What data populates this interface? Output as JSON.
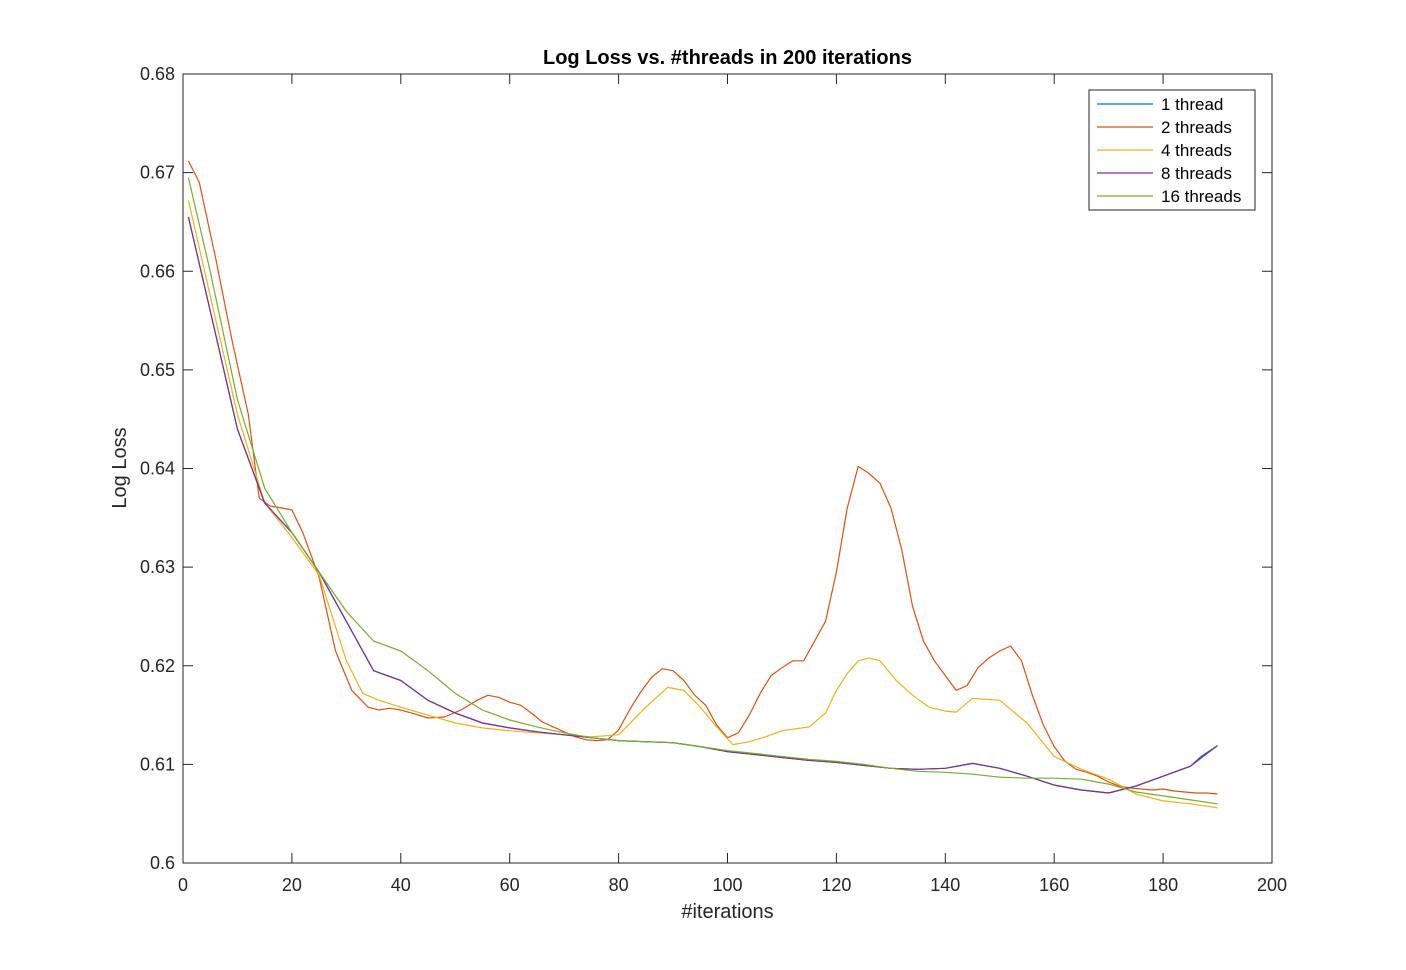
{
  "chart_data": {
    "type": "line",
    "title": "Log Loss vs. #threads in 200 iterations",
    "xlabel": "#iterations",
    "ylabel": "Log Loss",
    "xlim": [
      0,
      200
    ],
    "ylim": [
      0.6,
      0.68
    ],
    "xticks": [
      0,
      20,
      40,
      60,
      80,
      100,
      120,
      140,
      160,
      180,
      200
    ],
    "yticks": [
      0.6,
      0.61,
      0.62,
      0.63,
      0.64,
      0.65,
      0.66,
      0.67,
      0.68
    ],
    "ytick_labels": [
      "0.6",
      "0.61",
      "0.62",
      "0.63",
      "0.64",
      "0.65",
      "0.66",
      "0.67",
      "0.68"
    ],
    "grid": false,
    "legend_position": "top-right",
    "series": [
      {
        "name": "1 thread",
        "color": "#0072BD",
        "x": [
          1,
          5,
          10,
          15,
          20,
          25,
          30,
          35,
          40,
          45,
          50,
          55,
          60,
          65,
          70,
          75,
          80,
          85,
          90,
          95,
          100,
          105,
          110,
          115,
          120,
          125,
          130,
          135,
          140,
          145,
          150,
          155,
          160,
          165,
          170,
          175,
          180,
          185,
          190
        ],
        "y": [
          0.6655,
          0.656,
          0.644,
          0.6365,
          0.6335,
          0.6295,
          0.6245,
          0.6195,
          0.6185,
          0.6165,
          0.6152,
          0.6142,
          0.6137,
          0.6133,
          0.613,
          0.6127,
          0.6124,
          0.6123,
          0.6122,
          0.6118,
          0.6113,
          0.611,
          0.6107,
          0.6104,
          0.6102,
          0.6099,
          0.6096,
          0.6095,
          0.6096,
          0.6101,
          0.6096,
          0.6088,
          0.6079,
          0.6074,
          0.6071,
          0.6078,
          0.6088,
          0.6098,
          0.6119
        ]
      },
      {
        "name": "2 threads",
        "color": "#D95319",
        "x": [
          1,
          3,
          6,
          9,
          12,
          14,
          16,
          18,
          20,
          22,
          25,
          28,
          31,
          34,
          36,
          38,
          40,
          42,
          45,
          48,
          51,
          54,
          56,
          58,
          60,
          62,
          64,
          66,
          68,
          70,
          72,
          74,
          76,
          78,
          80,
          82,
          84,
          86,
          88,
          90,
          92,
          94,
          96,
          98,
          100,
          102,
          104,
          106,
          108,
          110,
          112,
          114,
          116,
          118,
          120,
          122,
          124,
          126,
          128,
          130,
          132,
          134,
          136,
          138,
          140,
          142,
          144,
          146,
          148,
          150,
          152,
          154,
          156,
          158,
          160,
          162,
          164,
          166,
          168,
          170,
          172,
          174,
          176,
          178,
          180,
          182,
          184,
          186,
          188,
          190
        ],
        "y": [
          0.6712,
          0.669,
          0.6613,
          0.653,
          0.6455,
          0.637,
          0.6362,
          0.636,
          0.6358,
          0.6335,
          0.629,
          0.6215,
          0.6175,
          0.6158,
          0.6155,
          0.6157,
          0.6155,
          0.6152,
          0.6147,
          0.6148,
          0.6155,
          0.6165,
          0.617,
          0.6168,
          0.6163,
          0.616,
          0.6152,
          0.6143,
          0.6138,
          0.6133,
          0.6128,
          0.6125,
          0.6124,
          0.6125,
          0.6135,
          0.6155,
          0.6173,
          0.6188,
          0.6197,
          0.6195,
          0.6185,
          0.617,
          0.616,
          0.614,
          0.6127,
          0.6132,
          0.615,
          0.6172,
          0.619,
          0.6198,
          0.6205,
          0.6205,
          0.6225,
          0.6245,
          0.6295,
          0.636,
          0.6402,
          0.6395,
          0.6385,
          0.636,
          0.6318,
          0.626,
          0.6225,
          0.6205,
          0.619,
          0.6175,
          0.618,
          0.6198,
          0.6208,
          0.6215,
          0.622,
          0.6205,
          0.617,
          0.614,
          0.6118,
          0.6103,
          0.6095,
          0.6092,
          0.6088,
          0.6082,
          0.6078,
          0.6076,
          0.6075,
          0.6074,
          0.6075,
          0.6073,
          0.6072,
          0.6071,
          0.6071,
          0.607
        ]
      },
      {
        "name": "4 threads",
        "color": "#EDB120",
        "x": [
          1,
          5,
          10,
          15,
          20,
          25,
          30,
          33,
          36,
          40,
          45,
          50,
          55,
          60,
          65,
          70,
          75,
          80,
          85,
          89,
          92,
          95,
          98,
          101,
          104,
          107,
          110,
          115,
          118,
          120,
          122,
          124,
          126,
          128,
          131,
          134,
          137,
          140,
          142,
          145,
          150,
          155,
          160,
          165,
          170,
          175,
          180,
          185,
          190
        ],
        "y": [
          0.6672,
          0.6575,
          0.6455,
          0.6365,
          0.633,
          0.6292,
          0.6205,
          0.6172,
          0.6165,
          0.6158,
          0.615,
          0.6142,
          0.6137,
          0.6134,
          0.6132,
          0.613,
          0.6128,
          0.613,
          0.6158,
          0.6178,
          0.6175,
          0.6158,
          0.6138,
          0.612,
          0.6123,
          0.6128,
          0.6134,
          0.6138,
          0.6152,
          0.6175,
          0.6192,
          0.6205,
          0.6208,
          0.6205,
          0.6185,
          0.617,
          0.6158,
          0.6154,
          0.6153,
          0.6167,
          0.6165,
          0.6142,
          0.6108,
          0.6095,
          0.6085,
          0.607,
          0.6063,
          0.606,
          0.6056
        ]
      },
      {
        "name": "8 threads",
        "color": "#7E2F8E",
        "x": [
          1,
          5,
          10,
          15,
          20,
          25,
          30,
          35,
          40,
          45,
          50,
          55,
          60,
          65,
          70,
          75,
          80,
          85,
          90,
          95,
          100,
          105,
          110,
          115,
          120,
          125,
          130,
          135,
          140,
          145,
          150,
          155,
          160,
          165,
          170,
          175,
          180,
          185,
          187,
          190
        ],
        "y": [
          0.6655,
          0.656,
          0.644,
          0.6365,
          0.6335,
          0.6295,
          0.6245,
          0.6195,
          0.6185,
          0.6165,
          0.6152,
          0.6142,
          0.6137,
          0.6133,
          0.613,
          0.6127,
          0.6124,
          0.6123,
          0.6122,
          0.6118,
          0.6113,
          0.611,
          0.6107,
          0.6104,
          0.6102,
          0.6099,
          0.6096,
          0.6095,
          0.6096,
          0.6101,
          0.6096,
          0.6088,
          0.6079,
          0.6074,
          0.6071,
          0.6078,
          0.6088,
          0.6098,
          0.6108,
          0.6119
        ]
      },
      {
        "name": "16 threads",
        "color": "#77AC30",
        "x": [
          1,
          5,
          10,
          15,
          20,
          25,
          30,
          35,
          40,
          45,
          50,
          55,
          60,
          65,
          70,
          75,
          80,
          85,
          90,
          95,
          100,
          105,
          110,
          115,
          120,
          125,
          130,
          135,
          140,
          145,
          150,
          155,
          160,
          165,
          170,
          175,
          180,
          185,
          190
        ],
        "y": [
          0.6695,
          0.66,
          0.647,
          0.638,
          0.6335,
          0.6295,
          0.6255,
          0.6225,
          0.6215,
          0.6195,
          0.6172,
          0.6155,
          0.6145,
          0.6138,
          0.6132,
          0.6127,
          0.6124,
          0.6123,
          0.6122,
          0.6118,
          0.6114,
          0.6111,
          0.6108,
          0.6105,
          0.6103,
          0.61,
          0.6096,
          0.6093,
          0.6092,
          0.609,
          0.6087,
          0.6086,
          0.6086,
          0.6085,
          0.608,
          0.6072,
          0.6068,
          0.6064,
          0.606
        ]
      }
    ]
  }
}
